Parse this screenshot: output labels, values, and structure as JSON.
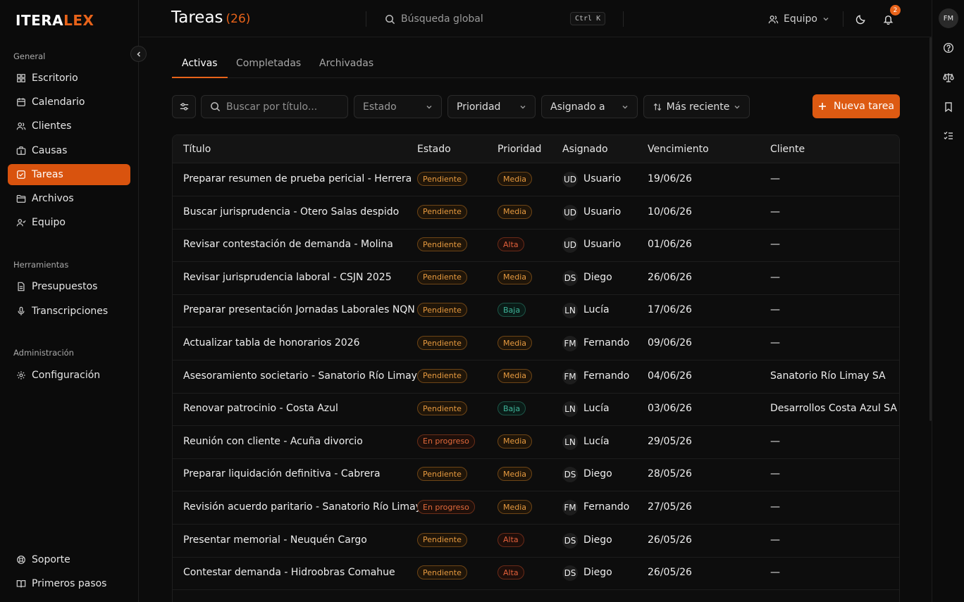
{
  "brand": {
    "part1": "ITERA",
    "part2": "LEX"
  },
  "sidebar": {
    "sections": [
      {
        "label": "General"
      },
      {
        "label": "Herramientas"
      },
      {
        "label": "Administración"
      }
    ],
    "items": [
      {
        "label": "Escritorio",
        "icon": "grid-icon",
        "active": false
      },
      {
        "label": "Calendario",
        "icon": "calendar-icon",
        "active": false
      },
      {
        "label": "Clientes",
        "icon": "users-icon",
        "active": false
      },
      {
        "label": "Causas",
        "icon": "briefcase-icon",
        "active": false
      },
      {
        "label": "Tareas",
        "icon": "checkbox-icon",
        "active": true
      },
      {
        "label": "Archivos",
        "icon": "folder-icon",
        "active": false
      },
      {
        "label": "Equipo",
        "icon": "team-icon",
        "active": false
      },
      {
        "label": "Presupuestos",
        "icon": "document-icon",
        "active": false
      },
      {
        "label": "Transcripciones",
        "icon": "microphone-icon",
        "active": false
      },
      {
        "label": "Configuración",
        "icon": "gear-icon",
        "active": false
      },
      {
        "label": "Soporte",
        "icon": "lifebuoy-icon",
        "active": false
      },
      {
        "label": "Primeros pasos",
        "icon": "book-icon",
        "active": false
      }
    ]
  },
  "header": {
    "title": "Tareas",
    "count": "(26)",
    "search_placeholder": "Búsqueda global",
    "shortcut": "Ctrl K",
    "team_label": "Equipo",
    "notifications_count": "2",
    "user_initials": "FM"
  },
  "tabs": [
    {
      "label": "Activas",
      "active": true
    },
    {
      "label": "Completadas",
      "active": false
    },
    {
      "label": "Archivadas",
      "active": false
    }
  ],
  "filters": {
    "search_placeholder": "Buscar por título...",
    "estado": "Estado",
    "prioridad": "Prioridad",
    "asignado": "Asignado a",
    "orden": "Más reciente",
    "new_button": "Nueva tarea"
  },
  "table": {
    "columns": [
      "Título",
      "Estado",
      "Prioridad",
      "Asignado",
      "Vencimiento",
      "Cliente"
    ],
    "rows": [
      {
        "titulo": "Preparar resumen de prueba pericial - Herrera",
        "estado": "Pendiente",
        "prioridad": "Media",
        "iniciales": "UD",
        "asignado": "Usuario",
        "vencimiento": "19/06/26",
        "cliente": "—"
      },
      {
        "titulo": "Buscar jurisprudencia - Otero Salas despido",
        "estado": "Pendiente",
        "prioridad": "Media",
        "iniciales": "UD",
        "asignado": "Usuario",
        "vencimiento": "10/06/26",
        "cliente": "—"
      },
      {
        "titulo": "Revisar contestación de demanda - Molina",
        "estado": "Pendiente",
        "prioridad": "Alta",
        "iniciales": "UD",
        "asignado": "Usuario",
        "vencimiento": "01/06/26",
        "cliente": "—"
      },
      {
        "titulo": "Revisar jurisprudencia laboral - CSJN 2025",
        "estado": "Pendiente",
        "prioridad": "Media",
        "iniciales": "DS",
        "asignado": "Diego",
        "vencimiento": "26/06/26",
        "cliente": "—"
      },
      {
        "titulo": "Preparar presentación Jornadas Laborales NQN",
        "estado": "Pendiente",
        "prioridad": "Baja",
        "iniciales": "LN",
        "asignado": "Lucía",
        "vencimiento": "17/06/26",
        "cliente": "—"
      },
      {
        "titulo": "Actualizar tabla de honorarios 2026",
        "estado": "Pendiente",
        "prioridad": "Media",
        "iniciales": "FM",
        "asignado": "Fernando",
        "vencimiento": "09/06/26",
        "cliente": "—"
      },
      {
        "titulo": "Asesoramiento societario - Sanatorio Río Limay",
        "estado": "Pendiente",
        "prioridad": "Media",
        "iniciales": "FM",
        "asignado": "Fernando",
        "vencimiento": "04/06/26",
        "cliente": "Sanatorio Río Limay SA"
      },
      {
        "titulo": "Renovar patrocinio - Costa Azul",
        "estado": "Pendiente",
        "prioridad": "Baja",
        "iniciales": "LN",
        "asignado": "Lucía",
        "vencimiento": "03/06/26",
        "cliente": "Desarrollos Costa Azul SA"
      },
      {
        "titulo": "Reunión con cliente - Acuña divorcio",
        "estado": "En progreso",
        "prioridad": "Media",
        "iniciales": "LN",
        "asignado": "Lucía",
        "vencimiento": "29/05/26",
        "cliente": "—"
      },
      {
        "titulo": "Preparar liquidación definitiva - Cabrera",
        "estado": "Pendiente",
        "prioridad": "Media",
        "iniciales": "DS",
        "asignado": "Diego",
        "vencimiento": "28/05/26",
        "cliente": "—"
      },
      {
        "titulo": "Revisión acuerdo paritario - Sanatorio Río Limay",
        "estado": "En progreso",
        "prioridad": "Media",
        "iniciales": "FM",
        "asignado": "Fernando",
        "vencimiento": "27/05/26",
        "cliente": "—"
      },
      {
        "titulo": "Presentar memorial - Neuquén Cargo",
        "estado": "Pendiente",
        "prioridad": "Alta",
        "iniciales": "DS",
        "asignado": "Diego",
        "vencimiento": "26/05/26",
        "cliente": "—"
      },
      {
        "titulo": "Contestar demanda - Hidroobras Comahue",
        "estado": "Pendiente",
        "prioridad": "Alta",
        "iniciales": "DS",
        "asignado": "Diego",
        "vencimiento": "26/05/26",
        "cliente": "—"
      }
    ]
  },
  "colors": {
    "accent": "#dd5a12",
    "background": "#0c0c0c"
  }
}
